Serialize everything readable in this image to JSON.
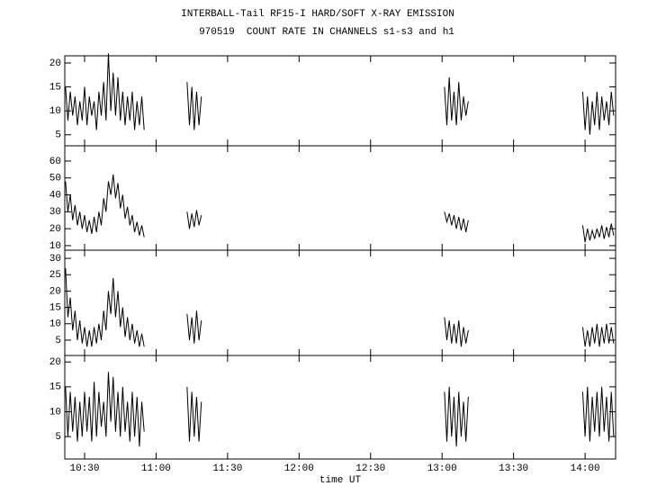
{
  "chart_data": [
    {
      "type": "line",
      "title": "INTERBALL-Tail RF15-I HARD/SOFT X-RAY EMISSION",
      "subtitle": "970519  COUNT RATE IN CHANNELS s1-s3 and h1",
      "x": [
        622,
        623,
        624,
        625,
        626,
        627,
        628,
        629,
        630,
        631,
        632,
        633,
        634,
        635,
        636,
        637,
        638,
        639,
        640,
        641,
        642,
        643,
        644,
        645,
        646,
        647,
        648,
        649,
        650,
        651,
        652,
        653,
        654,
        655,
        664,
        673,
        674,
        675,
        676,
        677,
        678,
        679,
        730,
        781,
        782,
        783,
        784,
        785,
        786,
        787,
        788,
        789,
        790,
        791,
        815,
        839,
        840,
        841,
        842,
        843,
        844,
        845,
        846,
        847,
        848,
        849,
        850,
        851,
        852
      ],
      "values": [
        15,
        8,
        14,
        9,
        13,
        7,
        12,
        8,
        15,
        7,
        13,
        9,
        12,
        6,
        14,
        9,
        16,
        8,
        22,
        10,
        18,
        9,
        17,
        8,
        14,
        7,
        13,
        8,
        14,
        6,
        12,
        7,
        13,
        6,
        null,
        16,
        7,
        15,
        6,
        14,
        7,
        13,
        null,
        15,
        7,
        17,
        8,
        14,
        7,
        16,
        8,
        13,
        9,
        12,
        null,
        14,
        6,
        13,
        5,
        12,
        7,
        14,
        6,
        13,
        8,
        12,
        7,
        14,
        9
      ],
      "xlim": [
        621.7,
        852.8
      ],
      "ylim": [
        2.7,
        21.5
      ],
      "yticks": [
        5,
        10,
        15,
        20
      ],
      "color": "#000000"
    },
    {
      "type": "line",
      "x": [
        622,
        623,
        624,
        625,
        626,
        627,
        628,
        629,
        630,
        631,
        632,
        633,
        634,
        635,
        636,
        637,
        638,
        639,
        640,
        641,
        642,
        643,
        644,
        645,
        646,
        647,
        648,
        649,
        650,
        651,
        652,
        653,
        654,
        655,
        664,
        673,
        674,
        675,
        676,
        677,
        678,
        679,
        730,
        781,
        782,
        783,
        784,
        785,
        786,
        787,
        788,
        789,
        790,
        791,
        815,
        839,
        840,
        841,
        842,
        843,
        844,
        845,
        846,
        847,
        848,
        849,
        850,
        851,
        852
      ],
      "values": [
        48,
        30,
        40,
        25,
        34,
        22,
        30,
        20,
        28,
        18,
        25,
        17,
        27,
        18,
        30,
        22,
        38,
        30,
        48,
        40,
        52,
        38,
        47,
        32,
        40,
        26,
        33,
        22,
        28,
        18,
        24,
        16,
        22,
        15,
        null,
        30,
        20,
        29,
        21,
        31,
        22,
        28,
        null,
        30,
        24,
        29,
        22,
        28,
        20,
        27,
        19,
        26,
        18,
        25,
        null,
        22,
        12,
        20,
        13,
        19,
        14,
        20,
        15,
        22,
        14,
        21,
        15,
        23,
        16
      ],
      "xlim": [
        621.7,
        852.8
      ],
      "ylim": [
        7.3,
        69
      ],
      "yticks": [
        10,
        20,
        30,
        40,
        50,
        60
      ],
      "color": "#000000"
    },
    {
      "type": "line",
      "x": [
        622,
        623,
        624,
        625,
        626,
        627,
        628,
        629,
        630,
        631,
        632,
        633,
        634,
        635,
        636,
        637,
        638,
        639,
        640,
        641,
        642,
        643,
        644,
        645,
        646,
        647,
        648,
        649,
        650,
        651,
        652,
        653,
        654,
        655,
        664,
        673,
        674,
        675,
        676,
        677,
        678,
        679,
        730,
        781,
        782,
        783,
        784,
        785,
        786,
        787,
        788,
        789,
        790,
        791,
        815,
        839,
        840,
        841,
        842,
        843,
        844,
        845,
        846,
        847,
        848,
        849,
        850,
        851,
        852
      ],
      "values": [
        27,
        12,
        18,
        8,
        14,
        5,
        11,
        4,
        9,
        3,
        8,
        3,
        9,
        4,
        10,
        5,
        14,
        8,
        20,
        13,
        24,
        12,
        20,
        9,
        15,
        6,
        12,
        5,
        10,
        4,
        8,
        3,
        7,
        3,
        null,
        13,
        5,
        12,
        4,
        14,
        5,
        11,
        null,
        12,
        5,
        11,
        4,
        10,
        4,
        11,
        3,
        9,
        4,
        8,
        null,
        9,
        3,
        8,
        3,
        9,
        4,
        10,
        3,
        9,
        4,
        10,
        4,
        9,
        4
      ],
      "xlim": [
        621.7,
        852.8
      ],
      "ylim": [
        0.3,
        32.5
      ],
      "yticks": [
        5,
        10,
        15,
        20,
        25,
        30
      ],
      "color": "#000000"
    },
    {
      "type": "line",
      "xlabel": "time UT",
      "x": [
        622,
        623,
        624,
        625,
        626,
        627,
        628,
        629,
        630,
        631,
        632,
        633,
        634,
        635,
        636,
        637,
        638,
        639,
        640,
        641,
        642,
        643,
        644,
        645,
        646,
        647,
        648,
        649,
        650,
        651,
        652,
        653,
        654,
        655,
        664,
        673,
        674,
        675,
        676,
        677,
        678,
        679,
        730,
        781,
        782,
        783,
        784,
        785,
        786,
        787,
        788,
        789,
        790,
        791,
        815,
        839,
        840,
        841,
        842,
        843,
        844,
        845,
        846,
        847,
        848,
        849,
        850,
        851,
        852
      ],
      "values": [
        15,
        5,
        14,
        6,
        13,
        4,
        12,
        5,
        14,
        6,
        13,
        4,
        16,
        5,
        14,
        7,
        12,
        5,
        18,
        8,
        17,
        6,
        14,
        5,
        15,
        6,
        12,
        4,
        14,
        5,
        13,
        3,
        12,
        6,
        null,
        15,
        4,
        14,
        5,
        13,
        4,
        12,
        null,
        14,
        4,
        15,
        5,
        13,
        3,
        14,
        5,
        12,
        4,
        13,
        null,
        14,
        5,
        15,
        4,
        13,
        6,
        14,
        5,
        15,
        6,
        13,
        4,
        14,
        5
      ],
      "xlim": [
        621.7,
        852.8
      ],
      "ylim": [
        0.5,
        21.3
      ],
      "yticks": [
        5,
        10,
        15,
        20
      ],
      "xticks": [
        {
          "value": 630,
          "label": "10:30"
        },
        {
          "value": 660,
          "label": "11:00"
        },
        {
          "value": 690,
          "label": "11:30"
        },
        {
          "value": 720,
          "label": "12:00"
        },
        {
          "value": 750,
          "label": "12:30"
        },
        {
          "value": 780,
          "label": "13:00"
        },
        {
          "value": 810,
          "label": "13:30"
        },
        {
          "value": 840,
          "label": "14:00"
        }
      ],
      "color": "#000000"
    }
  ]
}
